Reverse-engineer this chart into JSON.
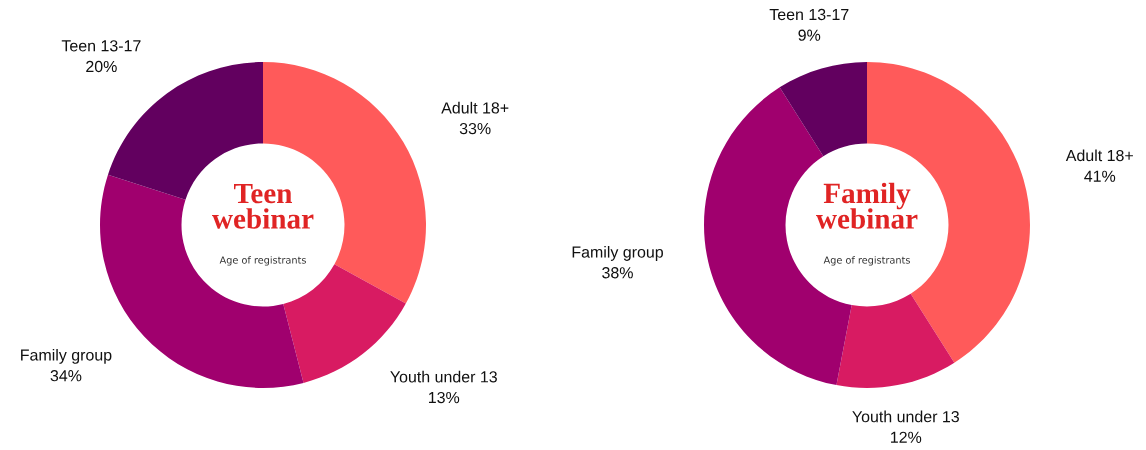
{
  "chart_data": [
    {
      "type": "donut",
      "title": "Teen\nwebinar",
      "subtitle": "Age of registrants",
      "categories": [
        "Adult 18+",
        "Youth under 13",
        "Family group",
        "Teen 13-17"
      ],
      "values": [
        33,
        13,
        34,
        20
      ],
      "value_labels": [
        "33%",
        "13%",
        "34%",
        "20%"
      ],
      "colors": [
        "#ff5a5a",
        "#d81b62",
        "#a0006e",
        "#62005f"
      ]
    },
    {
      "type": "donut",
      "title": "Family\nwebinar",
      "subtitle": "Age of registrants",
      "categories": [
        "Adult 18+",
        "Youth under 13",
        "Family group",
        "Teen 13-17"
      ],
      "values": [
        41,
        12,
        38,
        9
      ],
      "value_labels": [
        "41%",
        "12%",
        "38%",
        "9%"
      ],
      "colors": [
        "#ff5a5a",
        "#d81b62",
        "#a0006e",
        "#62005f"
      ]
    }
  ]
}
